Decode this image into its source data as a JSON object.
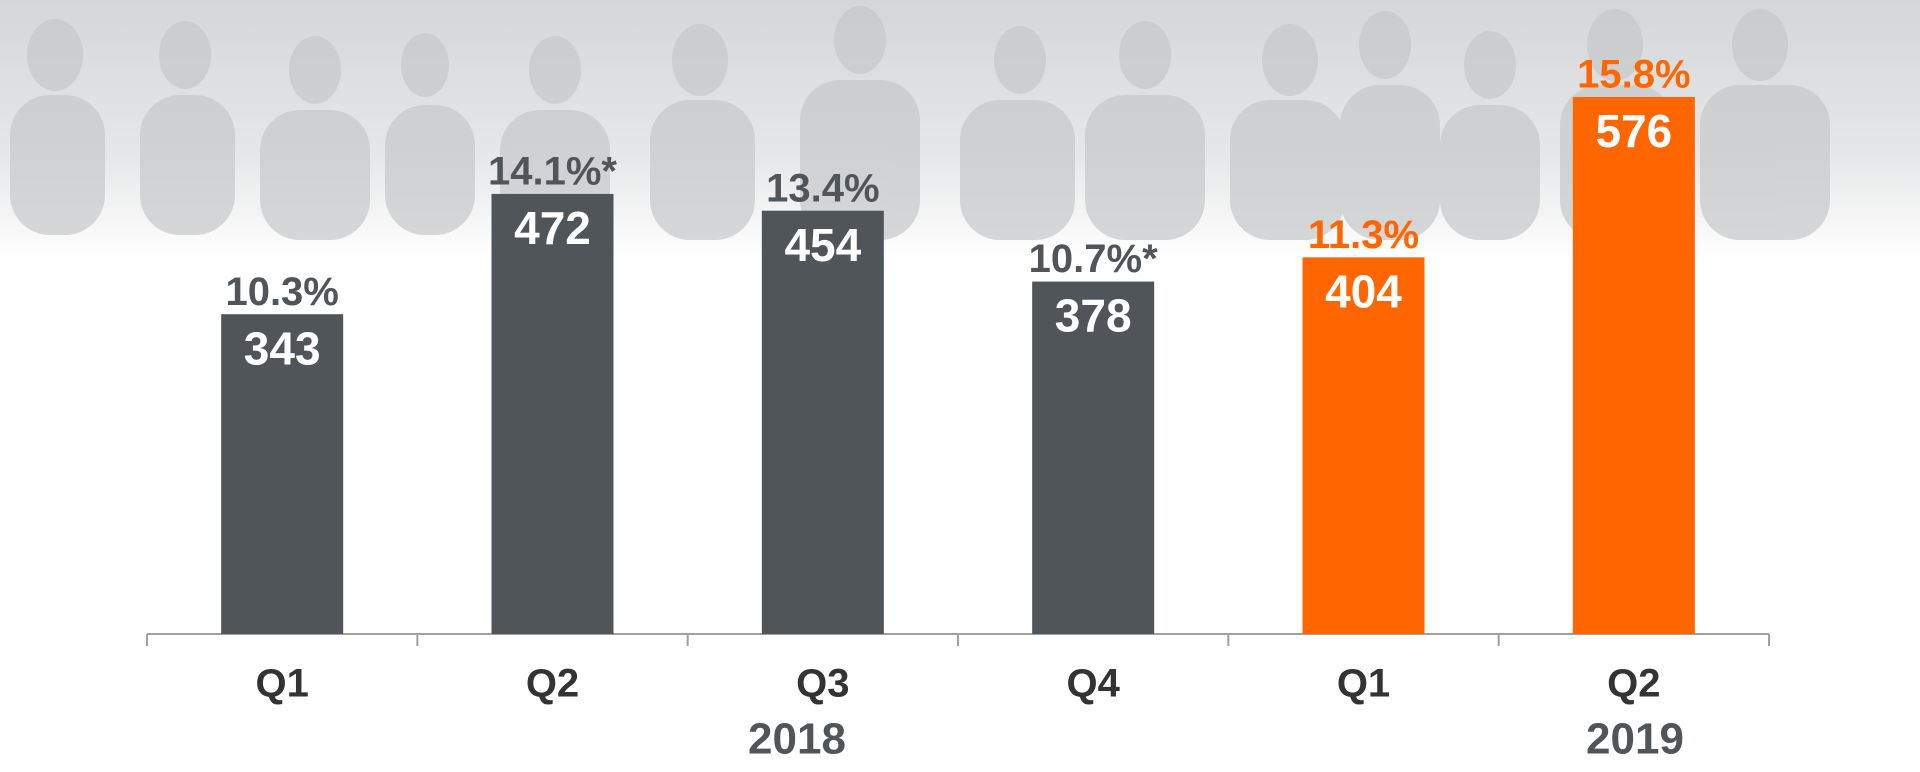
{
  "chart_data": {
    "type": "bar",
    "categories": [
      "Q1",
      "Q2",
      "Q3",
      "Q4",
      "Q1",
      "Q2"
    ],
    "values": [
      343,
      472,
      454,
      378,
      404,
      576
    ],
    "colors": [
      "#50555a",
      "#50555a",
      "#50555a",
      "#50555a",
      "#ff6600",
      "#ff6600"
    ],
    "annotations": [
      "10.3%",
      "14.1%*",
      "13.4%",
      "10.7%*",
      "11.3%",
      "15.8%"
    ],
    "groups": [
      "2018",
      "2019"
    ],
    "ylim": [
      0,
      680
    ]
  }
}
